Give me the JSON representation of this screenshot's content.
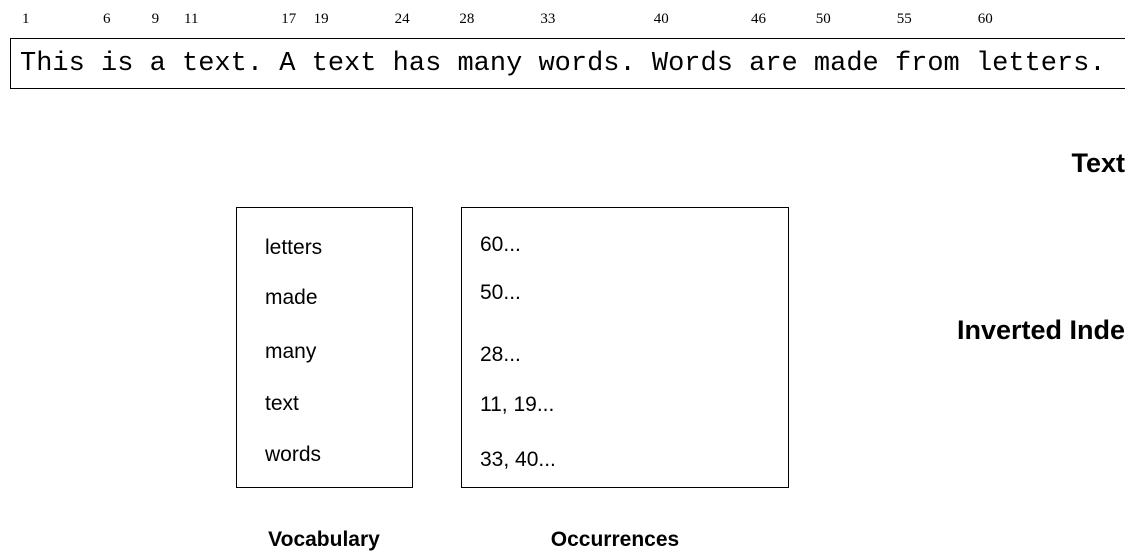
{
  "text": {
    "positions": [
      1,
      6,
      9,
      11,
      17,
      19,
      24,
      28,
      33,
      40,
      46,
      50,
      55,
      60
    ],
    "content": "This is a text. A text has many words. Words are made from letters.",
    "label": "Text"
  },
  "inverted_index": {
    "label": "Inverted Inde",
    "vocabulary": [
      "letters",
      "made",
      "many",
      "text",
      "words"
    ],
    "occurrences": [
      "60...",
      "50...",
      "28...",
      "11, 19...",
      "33, 40..."
    ],
    "vocabulary_label": "Vocabulary",
    "occurrences_label": "Occurrences"
  }
}
